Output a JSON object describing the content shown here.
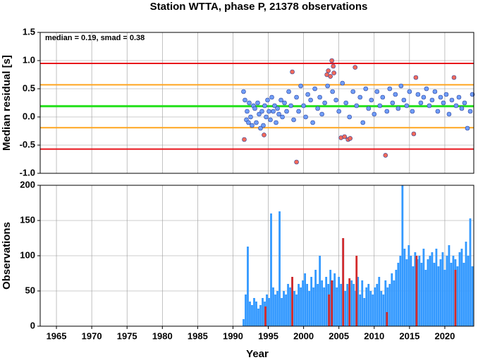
{
  "chart_data": [
    {
      "type": "scatter",
      "title": "Station WTTA, phase P, 21378 observations",
      "ylabel": "Median residual [s]",
      "annotation": "median = 0.19, smad = 0.38",
      "xlim": [
        1962.7,
        2024.1
      ],
      "ylim": [
        -1.0,
        1.5
      ],
      "yticks": [
        {
          "value": -1.0,
          "label": "-1.0"
        },
        -0.5,
        {
          "value": 0,
          "label": "0.0"
        },
        0.5,
        {
          "value": 1.0,
          "label": "1.0"
        },
        1.5
      ],
      "grid": true,
      "hlines": {
        "values": [
          0.95,
          0.57,
          0.19,
          -0.19,
          -0.57
        ],
        "colors": [
          "#e8141b",
          "#ffa51f",
          "#22e01a",
          "#ffa51f",
          "#e8141b"
        ]
      },
      "series": [
        {
          "color": "#6f9df7",
          "x": [
            1991.5,
            1991.7,
            1991.9,
            1992.0,
            1992.2,
            1992.3,
            1992.5,
            1992.7,
            1992.9,
            1993.1,
            1993.3,
            1993.5,
            1993.7,
            1993.9,
            1994.1,
            1994.3,
            1994.5,
            1994.7,
            1994.9,
            1995.1,
            1995.3,
            1995.5,
            1995.7,
            1995.9,
            1996.1,
            1996.3,
            1996.5,
            1996.8,
            1997.0,
            1997.3,
            1997.6,
            1997.9,
            1998.2,
            1998.6,
            1999.0,
            1999.3,
            1999.6,
            2000.0,
            2000.3,
            2000.6,
            2001.0,
            2001.3,
            2001.6,
            2002.0,
            2002.3,
            2002.6,
            2003.0,
            2003.4,
            2004.1,
            2004.6,
            2005.0,
            2005.5,
            2006.0,
            2006.5,
            2007.0,
            2007.5,
            2008.0,
            2008.4,
            2008.8,
            2009.2,
            2009.6,
            2010.0,
            2010.4,
            2010.8,
            2011.2,
            2011.8,
            2012.2,
            2012.6,
            2013.0,
            2013.4,
            2013.8,
            2014.2,
            2014.6,
            2015.0,
            2015.4,
            2016.2,
            2016.6,
            2017.0,
            2017.4,
            2017.8,
            2018.2,
            2018.6,
            2019.0,
            2019.4,
            2019.8,
            2020.2,
            2020.6,
            2021.0,
            2021.6,
            2022.0,
            2022.4,
            2022.8,
            2023.2,
            2023.6,
            2023.9
          ],
          "values": [
            0.45,
            0.3,
            -0.05,
            0.1,
            -0.1,
            0.25,
            0.0,
            -0.15,
            0.2,
            0.15,
            -0.1,
            0.25,
            0.05,
            -0.2,
            0.1,
            -0.15,
            0.2,
            0.0,
            0.3,
            0.1,
            -0.05,
            0.35,
            0.1,
            0.2,
            -0.1,
            0.15,
            0.05,
            0.3,
            0.0,
            0.25,
            0.1,
            0.45,
            0.2,
            -0.05,
            0.35,
            0.1,
            0.55,
            0.2,
            0.0,
            0.4,
            0.3,
            -0.1,
            0.5,
            0.15,
            0.35,
            0.05,
            0.25,
            0.55,
            0.45,
            0.3,
            0.1,
            0.6,
            0.25,
            0.0,
            0.45,
            0.2,
            0.35,
            -0.1,
            0.5,
            0.15,
            0.3,
            0.05,
            0.45,
            0.2,
            0.35,
            0.1,
            0.5,
            0.25,
            0.4,
            0.15,
            0.55,
            0.3,
            0.2,
            0.45,
            0.1,
            0.4,
            0.25,
            0.35,
            0.5,
            0.2,
            0.3,
            0.45,
            0.1,
            0.35,
            0.25,
            0.4,
            0.05,
            0.3,
            0.2,
            0.35,
            0.15,
            0.25,
            -0.2,
            0.1,
            0.4
          ]
        },
        {
          "color": "#f46a5a",
          "x": [
            1991.6,
            1994.4,
            1998.4,
            1999.0,
            2003.3,
            2003.5,
            2003.8,
            2004.0,
            2004.2,
            2004.3,
            2005.3,
            2005.8,
            2006.3,
            2006.6,
            2007.3,
            2011.6,
            2015.6,
            2015.9,
            2021.3
          ],
          "values": [
            -0.4,
            -0.32,
            0.8,
            -0.8,
            0.75,
            0.82,
            0.72,
            1.0,
            0.9,
            0.78,
            -0.37,
            -0.35,
            -0.4,
            -0.38,
            0.88,
            -0.68,
            -0.3,
            0.7,
            0.7
          ]
        }
      ]
    },
    {
      "type": "bar",
      "ylabel": "Observations",
      "xlabel": "Year",
      "xlim": [
        1962.7,
        2024.1
      ],
      "ylim": [
        0,
        200
      ],
      "xticks": [
        1965,
        1970,
        1975,
        1980,
        1985,
        1990,
        1995,
        2000,
        2005,
        2010,
        2015,
        2020
      ],
      "yticks": [
        0,
        50,
        100,
        150,
        200
      ],
      "grid": true,
      "series": [
        {
          "color": "#3399ff",
          "x": [
            1991.5,
            1991.8,
            1992.1,
            1992.4,
            1992.7,
            1993.0,
            1993.3,
            1993.6,
            1993.9,
            1994.2,
            1994.5,
            1994.8,
            1995.1,
            1995.4,
            1995.7,
            1996.0,
            1996.3,
            1996.6,
            1996.9,
            1997.2,
            1997.5,
            1997.8,
            1998.1,
            1998.4,
            1998.7,
            1999.0,
            1999.3,
            1999.6,
            1999.9,
            2000.2,
            2000.5,
            2000.8,
            2001.1,
            2001.4,
            2001.7,
            2002.0,
            2002.3,
            2002.6,
            2002.9,
            2003.2,
            2003.5,
            2003.8,
            2004.1,
            2004.4,
            2004.7,
            2005.0,
            2005.3,
            2005.6,
            2005.9,
            2006.2,
            2006.5,
            2006.8,
            2007.1,
            2007.4,
            2007.7,
            2008.0,
            2008.3,
            2008.6,
            2008.9,
            2009.2,
            2009.5,
            2009.8,
            2010.1,
            2010.4,
            2010.7,
            2011.0,
            2011.3,
            2011.6,
            2011.9,
            2012.2,
            2012.5,
            2012.8,
            2013.1,
            2013.4,
            2013.7,
            2014.0,
            2014.3,
            2014.6,
            2014.9,
            2015.2,
            2015.5,
            2015.8,
            2016.1,
            2016.4,
            2016.7,
            2017.0,
            2017.3,
            2017.6,
            2017.9,
            2018.2,
            2018.5,
            2018.8,
            2019.1,
            2019.4,
            2019.7,
            2020.0,
            2020.3,
            2020.6,
            2020.9,
            2021.2,
            2021.5,
            2021.8,
            2022.1,
            2022.4,
            2022.7,
            2023.0,
            2023.3,
            2023.6,
            2023.9
          ],
          "values": [
            10,
            45,
            113,
            35,
            30,
            40,
            35,
            25,
            30,
            40,
            35,
            45,
            40,
            160,
            55,
            45,
            50,
            163,
            40,
            50,
            45,
            60,
            55,
            70,
            50,
            45,
            60,
            55,
            65,
            75,
            60,
            50,
            70,
            55,
            80,
            60,
            100,
            65,
            55,
            70,
            60,
            80,
            65,
            75,
            55,
            70,
            60,
            125,
            50,
            60,
            55,
            65,
            60,
            50,
            70,
            45,
            65,
            40,
            55,
            60,
            50,
            45,
            55,
            60,
            70,
            50,
            45,
            65,
            55,
            60,
            75,
            65,
            80,
            90,
            100,
            200,
            110,
            95,
            115,
            100,
            85,
            105,
            95,
            100,
            90,
            110,
            80,
            95,
            100,
            105,
            90,
            110,
            85,
            95,
            105,
            80,
            100,
            115,
            90,
            100,
            95,
            85,
            105,
            110,
            90,
            120,
            100,
            153,
            85
          ]
        },
        {
          "color": "#d42a2a",
          "x": [
            1994.6,
            1998.4,
            2003.6,
            2004.0,
            2005.6,
            2006.5,
            2007.5,
            2011.8,
            2016.0,
            2021.5
          ],
          "values": [
            28,
            70,
            45,
            65,
            125,
            68,
            100,
            20,
            100,
            80
          ]
        }
      ]
    }
  ]
}
